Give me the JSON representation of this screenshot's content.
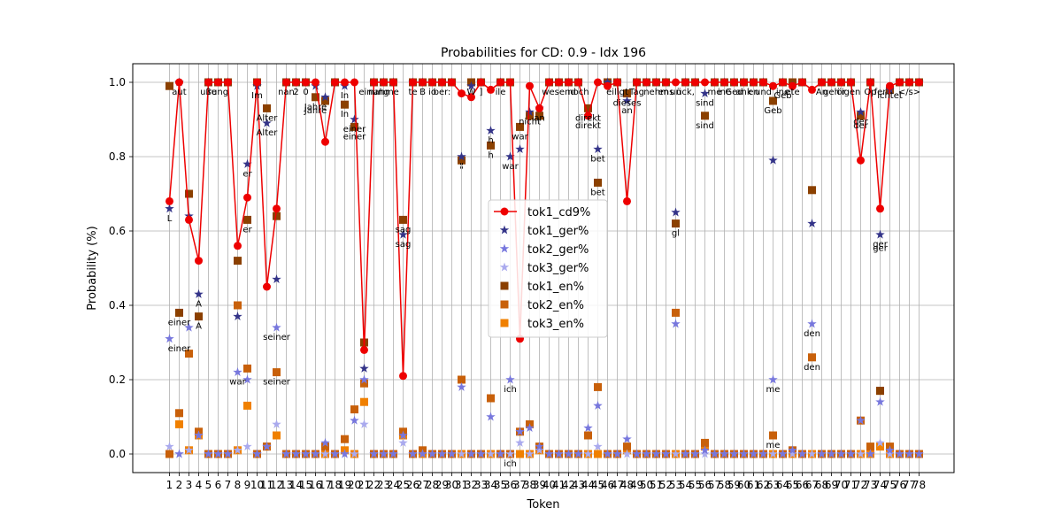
{
  "chart_data": {
    "type": "line",
    "title": "Probabilities for CD: 0.9 - Idx 196",
    "xlabel": "Token",
    "ylabel": "Probability (%)",
    "ylim": [
      -0.05,
      1.05
    ],
    "yticks": [
      "0.0",
      "0.2",
      "0.4",
      "0.6",
      "0.8",
      "1.0"
    ],
    "grid": true,
    "legend_position": "center",
    "categories": [
      "1",
      "2",
      "3",
      "4",
      "5",
      "6",
      "7",
      "8",
      "9",
      "10",
      "11",
      "12",
      "13",
      "14",
      "15",
      "16",
      "17",
      "18",
      "19",
      "20",
      "21",
      "22",
      "23",
      "24",
      "25",
      "26",
      "27",
      "28",
      "29",
      "30",
      "31",
      "32",
      "33",
      "34",
      "35",
      "36",
      "37",
      "38",
      "39",
      "40",
      "41",
      "42",
      "43",
      "44",
      "45",
      "46",
      "47",
      "48",
      "49",
      "50",
      "51",
      "52",
      "53",
      "54",
      "55",
      "56",
      "57",
      "58",
      "59",
      "60",
      "61",
      "62",
      "63",
      "64",
      "65",
      "66",
      "67",
      "68",
      "69",
      "70",
      "71",
      "72",
      "73",
      "74",
      "75",
      "76",
      "77",
      "78"
    ],
    "series": [
      {
        "name": "tok1_cd9%",
        "color": "#ee0000",
        "marker": "circle",
        "line": true,
        "values": [
          0.68,
          1.0,
          0.63,
          0.52,
          1.0,
          1.0,
          1.0,
          0.56,
          0.69,
          1.0,
          0.45,
          0.66,
          1.0,
          1.0,
          1.0,
          1.0,
          0.84,
          1.0,
          1.0,
          1.0,
          0.28,
          1.0,
          1.0,
          1.0,
          0.21,
          1.0,
          1.0,
          1.0,
          1.0,
          1.0,
          0.97,
          0.96,
          1.0,
          0.98,
          1.0,
          1.0,
          0.31,
          0.99,
          0.93,
          1.0,
          1.0,
          1.0,
          1.0,
          0.91,
          1.0,
          0.99,
          1.0,
          0.68,
          1.0,
          1.0,
          1.0,
          1.0,
          1.0,
          1.0,
          1.0,
          1.0,
          1.0,
          1.0,
          1.0,
          1.0,
          1.0,
          1.0,
          0.99,
          1.0,
          0.99,
          1.0,
          0.98,
          1.0,
          1.0,
          1.0,
          1.0,
          0.79,
          1.0,
          0.66,
          0.99,
          1.0,
          1.0,
          1.0
        ]
      },
      {
        "name": "tok1_ger%",
        "color": "#333388",
        "marker": "star",
        "line": false,
        "values": [
          0.66,
          1.0,
          0.64,
          0.43,
          1.0,
          1.0,
          1.0,
          0.37,
          0.78,
          0.99,
          0.89,
          0.47,
          1.0,
          1.0,
          1.0,
          0.99,
          0.96,
          1.0,
          0.99,
          0.9,
          0.23,
          1.0,
          1.0,
          1.0,
          0.59,
          1.0,
          1.0,
          1.0,
          1.0,
          1.0,
          0.8,
          0.99,
          1.0,
          0.87,
          1.0,
          0.8,
          0.82,
          0.92,
          0.93,
          1.0,
          1.0,
          1.0,
          1.0,
          0.91,
          0.82,
          1.0,
          1.0,
          0.95,
          1.0,
          1.0,
          1.0,
          1.0,
          0.65,
          1.0,
          1.0,
          0.97,
          1.0,
          1.0,
          1.0,
          1.0,
          1.0,
          1.0,
          0.79,
          1.0,
          0.99,
          1.0,
          0.62,
          1.0,
          1.0,
          1.0,
          1.0,
          0.92,
          1.0,
          0.59,
          0.98,
          1.0,
          1.0,
          1.0
        ]
      },
      {
        "name": "tok2_ger%",
        "color": "#7777dd",
        "marker": "star",
        "line": false,
        "values": [
          0.31,
          0.0,
          0.34,
          0.05,
          0.0,
          0.0,
          0.0,
          0.22,
          0.2,
          0.0,
          0.02,
          0.34,
          0.0,
          0.0,
          0.0,
          0.0,
          0.03,
          0.0,
          0.0,
          0.09,
          0.2,
          0.0,
          0.0,
          0.0,
          0.05,
          0.0,
          0.0,
          0.0,
          0.0,
          0.0,
          0.18,
          0.0,
          0.0,
          0.1,
          0.0,
          0.2,
          0.06,
          0.07,
          0.02,
          0.0,
          0.0,
          0.0,
          0.0,
          0.07,
          0.13,
          0.0,
          0.0,
          0.04,
          0.0,
          0.0,
          0.0,
          0.0,
          0.35,
          0.0,
          0.0,
          0.01,
          0.0,
          0.0,
          0.0,
          0.0,
          0.0,
          0.0,
          0.2,
          0.0,
          0.01,
          0.0,
          0.35,
          0.0,
          0.0,
          0.0,
          0.0,
          0.09,
          0.0,
          0.14,
          0.01,
          0.0,
          0.0,
          0.0
        ]
      },
      {
        "name": "tok3_ger%",
        "color": "#aaaaee",
        "marker": "star",
        "line": false,
        "values": [
          0.02,
          0.0,
          0.01,
          0.05,
          0.0,
          0.0,
          0.0,
          0.01,
          0.02,
          0.0,
          0.02,
          0.08,
          0.0,
          0.0,
          0.0,
          0.0,
          0.0,
          0.0,
          0.0,
          0.0,
          0.08,
          0.0,
          0.0,
          0.0,
          0.03,
          0.0,
          0.0,
          0.0,
          0.0,
          0.0,
          0.0,
          0.0,
          0.0,
          0.0,
          0.0,
          0.0,
          0.03,
          0.0,
          0.01,
          0.0,
          0.0,
          0.0,
          0.0,
          0.0,
          0.02,
          0.0,
          0.0,
          0.0,
          0.0,
          0.0,
          0.0,
          0.0,
          0.0,
          0.0,
          0.0,
          0.0,
          0.0,
          0.0,
          0.0,
          0.0,
          0.0,
          0.0,
          0.0,
          0.0,
          0.0,
          0.0,
          0.0,
          0.0,
          0.0,
          0.0,
          0.0,
          0.0,
          0.0,
          0.03,
          0.0,
          0.0,
          0.0,
          0.0
        ]
      },
      {
        "name": "tok1_en%",
        "color": "#8b4000",
        "marker": "square",
        "line": false,
        "values": [
          0.99,
          0.38,
          0.7,
          0.37,
          1.0,
          1.0,
          1.0,
          0.52,
          0.63,
          1.0,
          0.93,
          0.64,
          1.0,
          1.0,
          1.0,
          0.96,
          0.95,
          1.0,
          0.94,
          0.88,
          0.3,
          1.0,
          1.0,
          1.0,
          0.63,
          1.0,
          1.0,
          1.0,
          1.0,
          1.0,
          0.79,
          1.0,
          1.0,
          0.83,
          1.0,
          1.0,
          0.88,
          0.91,
          0.91,
          1.0,
          1.0,
          1.0,
          1.0,
          0.93,
          0.73,
          1.0,
          1.0,
          0.97,
          1.0,
          1.0,
          1.0,
          1.0,
          0.62,
          1.0,
          1.0,
          0.91,
          1.0,
          1.0,
          1.0,
          1.0,
          1.0,
          1.0,
          0.95,
          1.0,
          1.0,
          1.0,
          0.71,
          1.0,
          1.0,
          1.0,
          1.0,
          0.91,
          1.0,
          0.17,
          0.98,
          1.0,
          1.0,
          1.0
        ]
      },
      {
        "name": "tok2_en%",
        "color": "#c8600a",
        "marker": "square",
        "line": false,
        "values": [
          0.0,
          0.11,
          0.27,
          0.06,
          0.0,
          0.0,
          0.0,
          0.4,
          0.23,
          0.0,
          0.02,
          0.22,
          0.0,
          0.0,
          0.0,
          0.0,
          0.02,
          0.0,
          0.04,
          0.12,
          0.19,
          0.0,
          0.0,
          0.0,
          0.06,
          0.0,
          0.01,
          0.0,
          0.0,
          0.0,
          0.2,
          0.0,
          0.0,
          0.15,
          0.0,
          0.0,
          0.06,
          0.08,
          0.02,
          0.0,
          0.0,
          0.0,
          0.0,
          0.05,
          0.18,
          0.0,
          0.0,
          0.02,
          0.0,
          0.0,
          0.0,
          0.0,
          0.38,
          0.0,
          0.0,
          0.03,
          0.0,
          0.0,
          0.0,
          0.0,
          0.0,
          0.0,
          0.05,
          0.0,
          0.01,
          0.0,
          0.26,
          0.0,
          0.0,
          0.0,
          0.0,
          0.09,
          0.02,
          0.17,
          0.02,
          0.0,
          0.0,
          0.0
        ]
      },
      {
        "name": "tok3_en%",
        "color": "#f08000",
        "marker": "square",
        "line": false,
        "values": [
          0.0,
          0.08,
          0.01,
          0.05,
          0.0,
          0.0,
          0.0,
          0.01,
          0.13,
          0.0,
          0.02,
          0.05,
          0.0,
          0.0,
          0.0,
          0.0,
          0.0,
          0.0,
          0.01,
          0.0,
          0.14,
          0.0,
          0.0,
          0.0,
          0.05,
          0.0,
          0.0,
          0.0,
          0.0,
          0.0,
          0.0,
          0.0,
          0.0,
          0.0,
          0.0,
          0.0,
          0.0,
          0.0,
          0.01,
          0.0,
          0.0,
          0.0,
          0.0,
          0.0,
          0.0,
          0.0,
          0.0,
          0.01,
          0.0,
          0.0,
          0.0,
          0.0,
          0.0,
          0.0,
          0.0,
          0.02,
          0.0,
          0.0,
          0.0,
          0.0,
          0.0,
          0.0,
          0.0,
          0.0,
          0.0,
          0.0,
          0.0,
          0.0,
          0.0,
          0.0,
          0.0,
          0.0,
          0.0,
          0.02,
          0.0,
          0.0,
          0.0,
          0.0
        ]
      }
    ],
    "annotations": [
      {
        "x": 1,
        "y": 0.66,
        "text": "L"
      },
      {
        "x": 2,
        "y": 1.0,
        "text": "aut"
      },
      {
        "x": 2,
        "y": 0.31,
        "text": "einer"
      },
      {
        "x": 2,
        "y": 0.38,
        "text": "einer"
      },
      {
        "x": 4,
        "y": 0.43,
        "text": "A"
      },
      {
        "x": 4,
        "y": 0.37,
        "text": "A"
      },
      {
        "x": 5,
        "y": 1.0,
        "text": "uße"
      },
      {
        "x": 6,
        "y": 1.0,
        "text": "rung"
      },
      {
        "x": 8,
        "y": 0.22,
        "text": "war"
      },
      {
        "x": 9,
        "y": 0.78,
        "text": "er"
      },
      {
        "x": 9,
        "y": 0.63,
        "text": "er"
      },
      {
        "x": 10,
        "y": 0.99,
        "text": "Im"
      },
      {
        "x": 11,
        "y": 0.93,
        "text": "Alter"
      },
      {
        "x": 11,
        "y": 0.89,
        "text": "Alter"
      },
      {
        "x": 12,
        "y": 0.34,
        "text": "seiner"
      },
      {
        "x": 12,
        "y": 0.22,
        "text": "seiner"
      },
      {
        "x": 13,
        "y": 1.0,
        "text": "nan"
      },
      {
        "x": 14,
        "y": 1.0,
        "text": "2"
      },
      {
        "x": 15,
        "y": 1.0,
        "text": "0"
      },
      {
        "x": 16,
        "y": 0.96,
        "text": "Jahre"
      },
      {
        "x": 16,
        "y": 0.95,
        "text": "Jahre"
      },
      {
        "x": 19,
        "y": 0.99,
        "text": "In"
      },
      {
        "x": 19,
        "y": 0.94,
        "text": "In"
      },
      {
        "x": 20,
        "y": 0.9,
        "text": "einer"
      },
      {
        "x": 20,
        "y": 0.88,
        "text": "einer"
      },
      {
        "x": 22,
        "y": 1.0,
        "text": "einung"
      },
      {
        "x": 23,
        "y": 1.0,
        "text": "nahme"
      },
      {
        "x": 25,
        "y": 0.63,
        "text": "sag"
      },
      {
        "x": 25,
        "y": 0.59,
        "text": "sag"
      },
      {
        "x": 26,
        "y": 1.0,
        "text": "te"
      },
      {
        "x": 27,
        "y": 1.0,
        "text": "B"
      },
      {
        "x": 28,
        "y": 1.0,
        "text": "io"
      },
      {
        "x": 29,
        "y": 1.0,
        "text": "ber:"
      },
      {
        "x": 31,
        "y": 0.8,
        "text": "\""
      },
      {
        "x": 31,
        "y": 0.79,
        "text": "\""
      },
      {
        "x": 32,
        "y": 1.0,
        "text": "W"
      },
      {
        "x": 33,
        "y": 1.0,
        "text": "]"
      },
      {
        "x": 34,
        "y": 0.87,
        "text": "h"
      },
      {
        "x": 34,
        "y": 0.83,
        "text": "h"
      },
      {
        "x": 35,
        "y": 1.0,
        "text": "ile"
      },
      {
        "x": 36,
        "y": 0.8,
        "text": "war"
      },
      {
        "x": 36,
        "y": 0.2,
        "text": "ich"
      },
      {
        "x": 36,
        "y": 0.0,
        "text": "ich"
      },
      {
        "x": 37,
        "y": 0.88,
        "text": "war"
      },
      {
        "x": 38,
        "y": 0.92,
        "text": "nicht"
      },
      {
        "x": 39,
        "y": 0.93,
        "text": "an"
      },
      {
        "x": 41,
        "y": 1.0,
        "text": "wesend"
      },
      {
        "x": 43,
        "y": 1.0,
        "text": "noch"
      },
      {
        "x": 44,
        "y": 0.93,
        "text": "direkt"
      },
      {
        "x": 44,
        "y": 0.91,
        "text": "direkt"
      },
      {
        "x": 45,
        "y": 0.82,
        "text": "bet"
      },
      {
        "x": 45,
        "y": 0.73,
        "text": "bet"
      },
      {
        "x": 47,
        "y": 1.0,
        "text": "eiligt"
      },
      {
        "x": 48,
        "y": 0.97,
        "text": "dieses"
      },
      {
        "x": 48,
        "y": 0.95,
        "text": "an"
      },
      {
        "x": 49,
        "y": 1.0,
        "text": "Tag"
      },
      {
        "x": 51,
        "y": 1.0,
        "text": "nehm"
      },
      {
        "x": 52,
        "y": 1.0,
        "text": "ens"
      },
      {
        "x": 53,
        "y": 1.0,
        "text": "un"
      },
      {
        "x": 53,
        "y": 0.62,
        "text": "gl"
      },
      {
        "x": 54,
        "y": 1.0,
        "text": "ück,"
      },
      {
        "x": 56,
        "y": 0.97,
        "text": "sind"
      },
      {
        "x": 56,
        "y": 0.91,
        "text": "sind"
      },
      {
        "x": 57,
        "y": 1.0,
        "text": "me"
      },
      {
        "x": 58,
        "y": 1.0,
        "text": "ine"
      },
      {
        "x": 59,
        "y": 1.0,
        "text": "Ged"
      },
      {
        "x": 60,
        "y": 1.0,
        "text": "ank"
      },
      {
        "x": 61,
        "y": 1.0,
        "text": "en"
      },
      {
        "x": 62,
        "y": 1.0,
        "text": "und"
      },
      {
        "x": 63,
        "y": 0.95,
        "text": "Geb"
      },
      {
        "x": 63,
        "y": 0.2,
        "text": "me"
      },
      {
        "x": 63,
        "y": 0.05,
        "text": "me"
      },
      {
        "x": 64,
        "y": 1.0,
        "text": "ine"
      },
      {
        "x": 64,
        "y": 0.99,
        "text": "Geb"
      },
      {
        "x": 65,
        "y": 1.0,
        "text": "ete"
      },
      {
        "x": 67,
        "y": 0.35,
        "text": "den"
      },
      {
        "x": 67,
        "y": 0.26,
        "text": "den"
      },
      {
        "x": 68,
        "y": 1.0,
        "text": "An"
      },
      {
        "x": 69,
        "y": 1.0,
        "text": "geh"
      },
      {
        "x": 70,
        "y": 1.0,
        "text": "ör"
      },
      {
        "x": 71,
        "y": 1.0,
        "text": "igen"
      },
      {
        "x": 72,
        "y": 0.92,
        "text": "der"
      },
      {
        "x": 72,
        "y": 0.91,
        "text": "der"
      },
      {
        "x": 73,
        "y": 1.0,
        "text": "Op"
      },
      {
        "x": 74,
        "y": 1.0,
        "text": "fer"
      },
      {
        "x": 74,
        "y": 0.59,
        "text": "ger"
      },
      {
        "x": 74,
        "y": 0.58,
        "text": "ger"
      },
      {
        "x": 75,
        "y": 0.99,
        "text": "ichtet"
      },
      {
        "x": 77,
        "y": 1.0,
        "text": "</s>"
      }
    ]
  }
}
